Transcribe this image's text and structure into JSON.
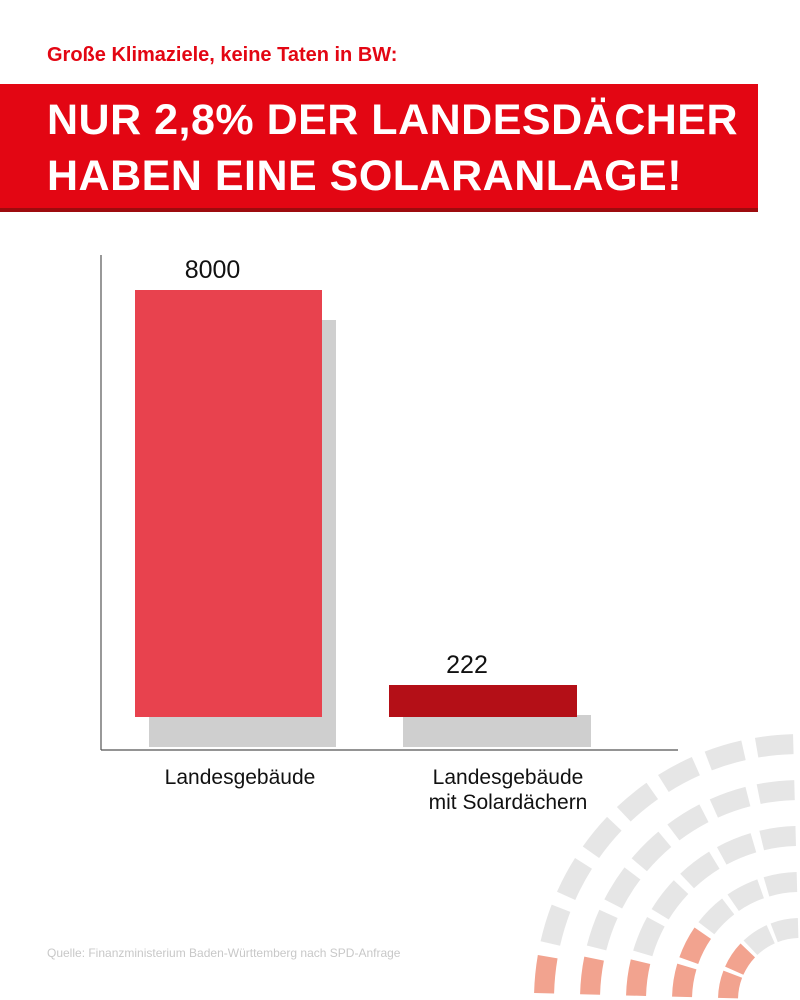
{
  "kicker": "Große Klimaziele, keine Taten in BW:",
  "headline": {
    "line1": "NUR 2,8% DER LANDESDÄCHER",
    "line2": "HABEN EINE SOLARANLAGE!"
  },
  "source": "Quelle: Finanzministerium Baden-Württemberg nach SPD-Anfrage",
  "colors": {
    "brand_red": "#e30613",
    "band_shadow": "#9d0b0e",
    "bar_light": "#e8424e",
    "bar_dark": "#b40f17",
    "bar_shadow": "#cfcfcf",
    "deco_gray": "#e6e6e6",
    "deco_salmon": "#f2a38f"
  },
  "chart_data": {
    "type": "bar",
    "categories": [
      "Landesgebäude",
      "Landesgebäude\nmit Solardächern"
    ],
    "values": [
      8000,
      222
    ],
    "value_labels": [
      "8000",
      "222"
    ],
    "bar_colors": [
      "#e8424e",
      "#b40f17"
    ],
    "ylim": [
      0,
      8000
    ],
    "grid": false,
    "legend": "none"
  }
}
